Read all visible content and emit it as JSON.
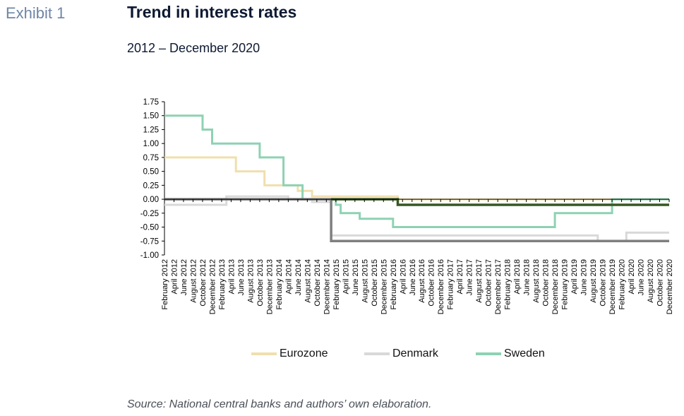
{
  "header": {
    "exhibit": "Exhibit 1",
    "title": "Trend in interest rates",
    "subtitle": "2012 – December 2020"
  },
  "source": "Source: National central banks and authors’ own elaboration.",
  "colors": {
    "eurozone": "#f0dfae",
    "denmark": "#d9d9d9",
    "sweden": "#8ed2b3",
    "dark_gray": "#7f7f7f",
    "dark_green": "#375623",
    "axis": "#000000"
  },
  "chart_data": {
    "type": "line",
    "title": "Trend in interest rates",
    "subtitle": "2012 – December 2020",
    "ylim": [
      -1.0,
      1.75
    ],
    "yticks": [
      "1.75",
      "1.50",
      "1.25",
      "1.00",
      "0.75",
      "0.50",
      "0.25",
      "0.00",
      "-0.25",
      "-0.50",
      "-0.75",
      "-1.00"
    ],
    "ytick_values": [
      1.75,
      1.5,
      1.25,
      1.0,
      0.75,
      0.5,
      0.25,
      0.0,
      -0.25,
      -0.5,
      -0.75,
      -1.0
    ],
    "x_start": "2012-02",
    "x_end": "2020-12",
    "x_tick_labels": [
      "February 2012",
      "April 2012",
      "June 2012",
      "August 2012",
      "October 2012",
      "December 2012",
      "February 2013",
      "April 2013",
      "June 2013",
      "August 2013",
      "October 2013",
      "December 2013",
      "February 2014",
      "April 2014",
      "June 2014",
      "August 2014",
      "October 2014",
      "December 2014",
      "February 2015",
      "April 2015",
      "June 2015",
      "August 2015",
      "October 2015",
      "December 2015",
      "February 2016",
      "April 2016",
      "June 2016",
      "August 2016",
      "October 2016",
      "December 2016",
      "February 2017",
      "April 2017",
      "June 2017",
      "August 2017",
      "October 2017",
      "December 2017",
      "February 2018",
      "April 2018",
      "June 2018",
      "August 2018",
      "October 2018",
      "December 2018",
      "February 2019",
      "April 2019",
      "June 2019",
      "August 2019",
      "October 2019",
      "December 2019",
      "February 2020",
      "April 2020",
      "June 2020",
      "August 2020",
      "October 2020",
      "December 2020"
    ],
    "legend_position": "bottom",
    "series": [
      {
        "name": "Eurozone",
        "color": "#f0dfae",
        "step_points": [
          [
            "2012-02",
            0.75
          ],
          [
            "2012-07",
            0.75
          ],
          [
            "2013-05",
            0.5
          ],
          [
            "2013-11",
            0.25
          ],
          [
            "2014-06",
            0.15
          ],
          [
            "2014-09",
            0.05
          ],
          [
            "2016-03",
            0.0
          ],
          [
            "2020-12",
            0.0
          ]
        ]
      },
      {
        "name": "Denmark",
        "color": "#d9d9d9",
        "step_points": [
          [
            "2012-02",
            -0.1
          ],
          [
            "2012-07",
            -0.1
          ],
          [
            "2013-03",
            0.05
          ],
          [
            "2014-04",
            0.0
          ],
          [
            "2014-09",
            -0.05
          ],
          [
            "2015-01",
            -0.65
          ],
          [
            "2019-09",
            -0.75
          ],
          [
            "2020-03",
            -0.6
          ],
          [
            "2020-12",
            -0.6
          ]
        ]
      },
      {
        "name": "Sweden",
        "color": "#8ed2b3",
        "step_points": [
          [
            "2012-02",
            1.5
          ],
          [
            "2012-07",
            1.5
          ],
          [
            "2012-10",
            1.25
          ],
          [
            "2012-12",
            1.0
          ],
          [
            "2013-10",
            0.75
          ],
          [
            "2014-03",
            0.25
          ],
          [
            "2014-07",
            0.0
          ],
          [
            "2015-02",
            -0.1
          ],
          [
            "2015-03",
            -0.25
          ],
          [
            "2015-07",
            -0.35
          ],
          [
            "2016-02",
            -0.5
          ],
          [
            "2018-12",
            -0.25
          ],
          [
            "2019-12",
            0.0
          ],
          [
            "2020-12",
            0.0
          ]
        ]
      },
      {
        "color": "#7f7f7f",
        "step_points": [
          [
            "2012-02",
            0.0
          ],
          [
            "2015-01",
            0.0
          ],
          [
            "2015-01",
            -0.75
          ],
          [
            "2020-12",
            -0.75
          ]
        ]
      },
      {
        "color": "#375623",
        "step_points": [
          [
            "2015-01",
            0.0
          ],
          [
            "2016-03",
            0.0
          ],
          [
            "2016-03",
            -0.1
          ],
          [
            "2020-12",
            -0.1
          ]
        ]
      }
    ]
  }
}
